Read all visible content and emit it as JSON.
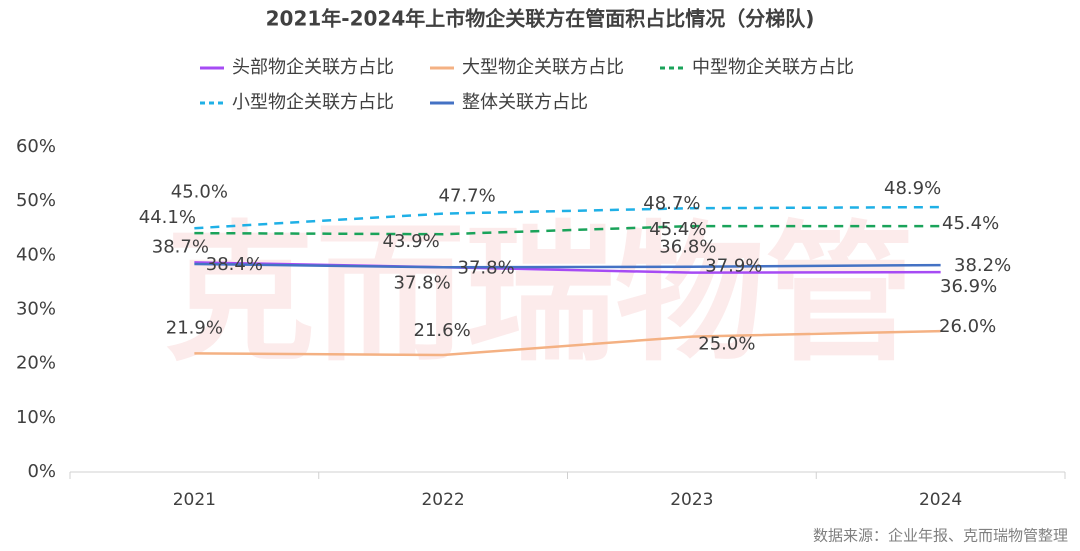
{
  "chart_data": {
    "type": "line",
    "title": "2021年-2024年上市物企关联方在管面积占比情况（分梯队)",
    "watermark": "克而瑞物管",
    "source": "数据来源：企业年报、克而瑞物管整理",
    "categories": [
      "2021",
      "2022",
      "2023",
      "2024"
    ],
    "ylim": [
      0,
      60
    ],
    "yticks": [
      {
        "value": 0,
        "label": "0%"
      },
      {
        "value": 10,
        "label": "10%"
      },
      {
        "value": 20,
        "label": "20%"
      },
      {
        "value": 30,
        "label": "30%"
      },
      {
        "value": 40,
        "label": "40%"
      },
      {
        "value": 50,
        "label": "50%"
      },
      {
        "value": 60,
        "label": "60%"
      }
    ],
    "series": [
      {
        "name": "头部物企关联方占比",
        "color": "#a64bf4",
        "line_style": "solid",
        "values": [
          38.7,
          37.8,
          36.8,
          36.9
        ],
        "value_labels": [
          "38.7%",
          "37.8%",
          "36.8%",
          "36.9%"
        ]
      },
      {
        "name": "大型物企关联方占比",
        "color": "#f4b183",
        "line_style": "solid",
        "values": [
          21.9,
          21.6,
          25.0,
          26.0
        ],
        "value_labels": [
          "21.9%",
          "21.6%",
          "25.0%",
          "26.0%"
        ]
      },
      {
        "name": "中型物企关联方占比",
        "color": "#1aa35a",
        "line_style": "dashed",
        "values": [
          44.1,
          43.9,
          45.4,
          45.4
        ],
        "value_labels": [
          "44.1%",
          "43.9%",
          "45.4%",
          "45.4%"
        ]
      },
      {
        "name": "小型物企关联方占比",
        "color": "#1fb0e6",
        "line_style": "dashed",
        "values": [
          45.0,
          47.7,
          48.7,
          48.9
        ],
        "value_labels": [
          "45.0%",
          "47.7%",
          "48.7%",
          "48.9%"
        ]
      },
      {
        "name": "整体关联方占比",
        "color": "#4472c4",
        "line_style": "solid",
        "values": [
          38.4,
          37.8,
          37.9,
          38.2
        ],
        "value_labels": [
          "38.4%",
          "37.8%",
          "37.9%",
          "38.2%"
        ]
      }
    ]
  }
}
